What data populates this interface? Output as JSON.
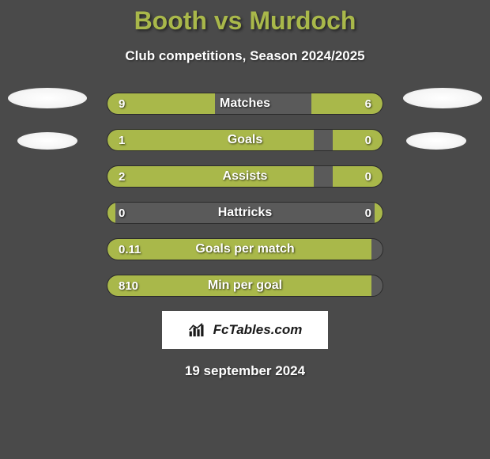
{
  "title": "Booth vs Murdoch",
  "subtitle": "Club competitions, Season 2024/2025",
  "colors": {
    "background": "#4a4a4a",
    "accent": "#a9b84a",
    "bar_track": "#5a5a5a",
    "bar_border": "#2b2b2b",
    "text": "#ffffff",
    "avatar": "#ffffff"
  },
  "stats": [
    {
      "label": "Matches",
      "left_value": "9",
      "right_value": "6",
      "left_width_pct": 39,
      "right_width_pct": 26
    },
    {
      "label": "Goals",
      "left_value": "1",
      "right_value": "0",
      "left_width_pct": 75,
      "right_width_pct": 18
    },
    {
      "label": "Assists",
      "left_value": "2",
      "right_value": "0",
      "left_width_pct": 75,
      "right_width_pct": 18
    },
    {
      "label": "Hattricks",
      "left_value": "0",
      "right_value": "0",
      "left_width_pct": 3,
      "right_width_pct": 3
    },
    {
      "label": "Goals per match",
      "left_value": "0.11",
      "right_value": "",
      "left_width_pct": 96,
      "right_width_pct": 0
    },
    {
      "label": "Min per goal",
      "left_value": "810",
      "right_value": "",
      "left_width_pct": 96,
      "right_width_pct": 0
    }
  ],
  "footer": {
    "badge_text": "FcTables.com",
    "date": "19 september 2024"
  }
}
